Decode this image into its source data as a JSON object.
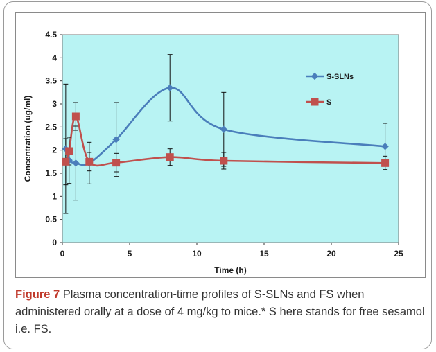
{
  "chart_data": {
    "type": "line",
    "xlabel": "Time (h)",
    "ylabel": "Concentration (ug/ml)",
    "xlim": [
      0,
      25
    ],
    "ylim": [
      0,
      4.5
    ],
    "xticks": [
      0,
      5,
      10,
      15,
      20,
      25
    ],
    "yticks": [
      0,
      0.5,
      1,
      1.5,
      2,
      2.5,
      3,
      3.5,
      4,
      4.5
    ],
    "x_tick_labels": [
      "0",
      "5",
      "10",
      "15",
      "20",
      "25"
    ],
    "y_tick_labels": [
      "0",
      "0.5",
      "1",
      "1.5",
      "2",
      "2.5",
      "3",
      "3.5",
      "4",
      "4.5"
    ],
    "plot_background": "#b8f3f3",
    "grid": false,
    "legend_position": "right",
    "series": [
      {
        "name": "S-SLNs",
        "color": "#4a7ebb",
        "marker": "diamond",
        "x": [
          0.25,
          0.5,
          1,
          2,
          4,
          8,
          12,
          24
        ],
        "y": [
          2.03,
          1.78,
          1.72,
          1.72,
          2.23,
          3.35,
          2.45,
          2.08
        ],
        "error": [
          1.4,
          0.5,
          0.8,
          0.45,
          0.8,
          0.72,
          0.8,
          0.5
        ]
      },
      {
        "name": "S",
        "color": "#c0504d",
        "marker": "square",
        "x": [
          0.25,
          0.5,
          1,
          2,
          4,
          8,
          12,
          24
        ],
        "y": [
          1.75,
          1.98,
          2.73,
          1.75,
          1.73,
          1.85,
          1.77,
          1.72
        ],
        "error": [
          0.5,
          0.3,
          0.3,
          0.2,
          0.2,
          0.18,
          0.18,
          0.15
        ]
      }
    ]
  },
  "caption": {
    "label": "Figure 7",
    "text": " Plasma concentration-time profiles of S-SLNs and FS when administered orally at a dose of 4 mg/kg to mice.* S here stands for free sesamol i.e. FS."
  }
}
